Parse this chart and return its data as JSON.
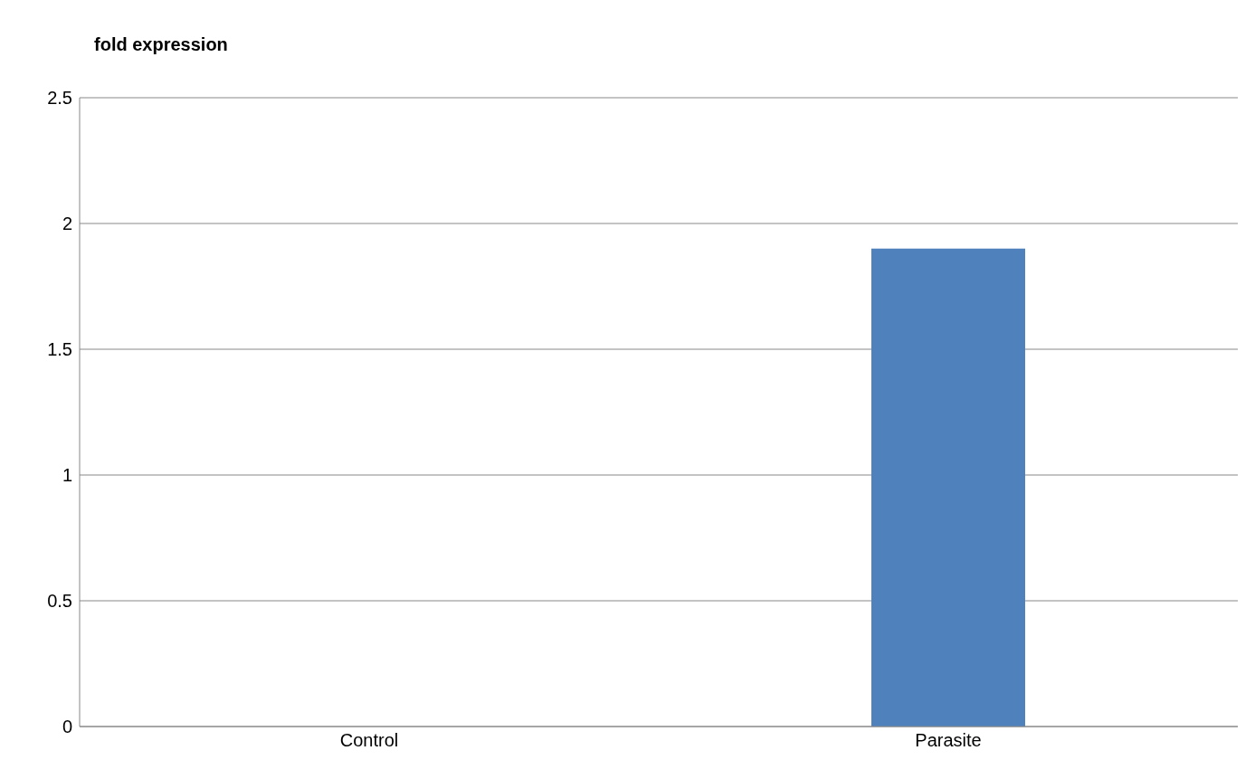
{
  "chart_data": {
    "type": "bar",
    "ylabel": "fold expression",
    "categories": [
      "Control",
      "Parasite"
    ],
    "values": [
      null,
      1.9
    ],
    "color": "#4f81bd",
    "ylim": [
      0,
      2.5
    ],
    "yticks": [
      0,
      0.5,
      1,
      1.5,
      2,
      2.5
    ],
    "grid": "y"
  }
}
